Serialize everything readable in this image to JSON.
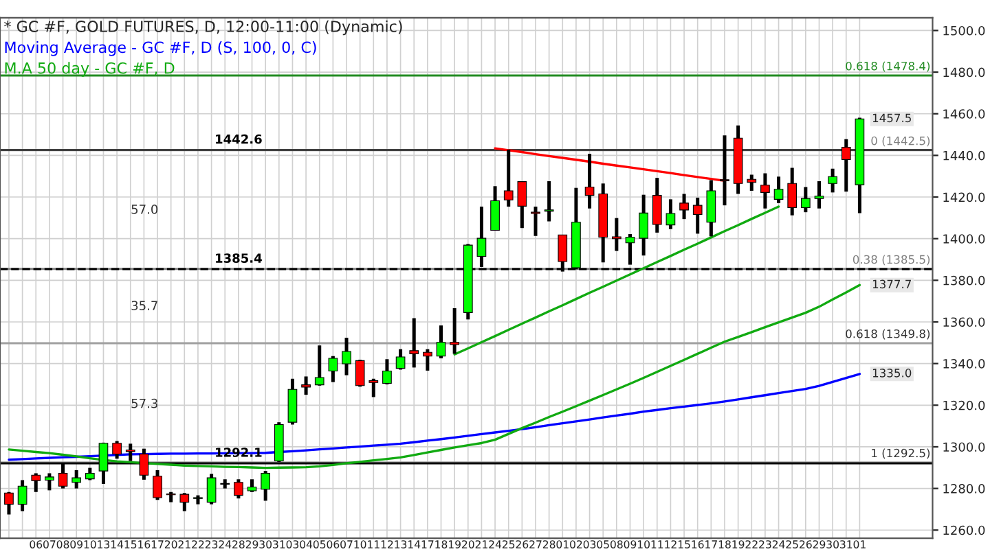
{
  "chart_data": {
    "type": "candlestick",
    "title": "* GC #F, GOLD FUTURES, D, 12:00-11:00 (Dynamic)",
    "categories": [
      null,
      null,
      "06",
      "07",
      "08",
      "09",
      "10",
      "13",
      "14",
      "15",
      "16",
      "17",
      "20",
      "21",
      "22",
      "23",
      "24",
      "28",
      "29",
      "30",
      "31",
      "03",
      "04",
      "05",
      "06",
      "07",
      "10",
      "11",
      "12",
      "13",
      "14",
      "17",
      "18",
      "19",
      "20",
      "21",
      "24",
      "25",
      "26",
      "27",
      "28",
      "01",
      "02",
      "03",
      "05",
      "08",
      "09",
      "10",
      "11",
      "12",
      "15",
      "16",
      "17",
      "18",
      "19",
      "22",
      "23",
      "24",
      "25",
      "26",
      "29",
      "30",
      "31",
      "01"
    ],
    "ohlc": [
      [
        1277.8,
        1278.3,
        1267.5,
        1272.4
      ],
      [
        1272.4,
        1284.0,
        1269.1,
        1281.1
      ],
      [
        1286.4,
        1287.3,
        1278.3,
        1283.8
      ],
      [
        1284.0,
        1287.3,
        1279.1,
        1285.5
      ],
      [
        1287.3,
        1292.3,
        1280.0,
        1281.1
      ],
      [
        1282.9,
        1288.8,
        1280.0,
        1285.1
      ],
      [
        1284.6,
        1289.9,
        1284.0,
        1287.3
      ],
      [
        1288.4,
        1302.0,
        1282.2,
        1301.7
      ],
      [
        1301.7,
        1302.8,
        1294.3,
        1296.5
      ],
      [
        1298.5,
        1301.5,
        1293.2,
        1297.7
      ],
      [
        1296.5,
        1299.1,
        1284.2,
        1286.4
      ],
      [
        1285.9,
        1288.8,
        1274.5,
        1275.6
      ],
      [
        1277.2,
        1278.3,
        1273.4,
        1277.0
      ],
      [
        1277.2,
        1277.8,
        1269.1,
        1273.4
      ],
      [
        1275.2,
        1276.7,
        1272.4,
        1275.3
      ],
      [
        1273.4,
        1287.0,
        1272.4,
        1285.1
      ],
      [
        1282.2,
        1284.4,
        1280.0,
        1282.0
      ],
      [
        1282.9,
        1284.4,
        1275.2,
        1276.7
      ],
      [
        1278.9,
        1284.4,
        1278.3,
        1280.7
      ],
      [
        1279.6,
        1288.4,
        1274.1,
        1287.3
      ],
      [
        1293.2,
        1311.8,
        1292.7,
        1310.7
      ],
      [
        1311.8,
        1332.7,
        1310.7,
        1327.6
      ],
      [
        1329.8,
        1333.8,
        1325.0,
        1328.7
      ],
      [
        1329.8,
        1348.7,
        1329.4,
        1333.3
      ],
      [
        1336.4,
        1343.6,
        1331.1,
        1342.5
      ],
      [
        1339.9,
        1352.4,
        1334.4,
        1345.8
      ],
      [
        1341.4,
        1341.8,
        1328.9,
        1329.4
      ],
      [
        1331.8,
        1332.7,
        1323.9,
        1330.9
      ],
      [
        1330.5,
        1342.1,
        1330.0,
        1336.4
      ],
      [
        1337.7,
        1346.9,
        1337.1,
        1343.2
      ],
      [
        1346.2,
        1361.8,
        1338.1,
        1344.7
      ],
      [
        1345.4,
        1346.9,
        1336.6,
        1343.6
      ],
      [
        1343.6,
        1358.3,
        1342.5,
        1350.2
      ],
      [
        1350.2,
        1366.6,
        1344.7,
        1349.1
      ],
      [
        1364.5,
        1397.4,
        1361.2,
        1396.9
      ],
      [
        1391.5,
        1415.4,
        1386.4,
        1400.2
      ],
      [
        1404.0,
        1425.2,
        1404.0,
        1418.2
      ],
      [
        1423.0,
        1442.8,
        1415.4,
        1418.6
      ],
      [
        1427.4,
        1427.6,
        1405.1,
        1415.6
      ],
      [
        1412.7,
        1415.4,
        1401.3,
        1412.1
      ],
      [
        1413.2,
        1427.6,
        1408.3,
        1413.8
      ],
      [
        1401.8,
        1401.8,
        1384.2,
        1389.0
      ],
      [
        1386.0,
        1424.4,
        1385.3,
        1407.9
      ],
      [
        1424.8,
        1440.8,
        1414.5,
        1420.8
      ],
      [
        1421.5,
        1426.5,
        1388.6,
        1400.7
      ],
      [
        1400.9,
        1409.9,
        1394.1,
        1400.0
      ],
      [
        1398.0,
        1402.2,
        1387.5,
        1400.7
      ],
      [
        1400.2,
        1421.1,
        1391.9,
        1412.3
      ],
      [
        1420.8,
        1429.2,
        1402.9,
        1406.8
      ],
      [
        1406.6,
        1418.9,
        1404.6,
        1412.1
      ],
      [
        1417.1,
        1421.5,
        1409.4,
        1413.8
      ],
      [
        1416.0,
        1419.7,
        1402.4,
        1411.6
      ],
      [
        1407.9,
        1428.1,
        1401.1,
        1423.0
      ],
      [
        1428.3,
        1449.6,
        1416.0,
        1427.8
      ],
      [
        1448.3,
        1454.4,
        1421.5,
        1426.5
      ],
      [
        1428.5,
        1430.7,
        1423.0,
        1427.0
      ],
      [
        1425.7,
        1431.4,
        1414.5,
        1422.2
      ],
      [
        1418.9,
        1429.8,
        1417.1,
        1423.7
      ],
      [
        1426.5,
        1434.0,
        1411.2,
        1414.9
      ],
      [
        1414.9,
        1424.8,
        1412.7,
        1419.3
      ],
      [
        1419.3,
        1427.6,
        1414.5,
        1420.4
      ],
      [
        1426.5,
        1433.6,
        1422.2,
        1429.8
      ],
      [
        1443.9,
        1447.8,
        1422.6,
        1438.0
      ],
      [
        1425.9,
        1458.1,
        1412.3,
        1457.5
      ]
    ],
    "colors": [
      "#ff0000",
      "#00ff00",
      "#ff0000",
      "#00ff00",
      "#ff0000",
      "#00ff00",
      "#00ff00",
      "#00ff00",
      "#ff0000",
      "#ff0000",
      "#ff0000",
      "#ff0000",
      "#ff0000",
      "#ff0000",
      "#00ff00",
      "#00ff00",
      "#ff0000",
      "#ff0000",
      "#00ff00",
      "#00ff00",
      "#00ff00",
      "#00ff00",
      "#ff0000",
      "#00ff00",
      "#00ff00",
      "#00ff00",
      "#ff0000",
      "#ff0000",
      "#00ff00",
      "#00ff00",
      "#ff0000",
      "#ff0000",
      "#00ff00",
      "#ff0000",
      "#00ff00",
      "#00ff00",
      "#00ff00",
      "#ff0000",
      "#ff0000",
      "#ff0000",
      "#00ff00",
      "#ff0000",
      "#00ff00",
      "#ff0000",
      "#ff0000",
      "#ff0000",
      "#00ff00",
      "#00ff00",
      "#ff0000",
      "#00ff00",
      "#ff0000",
      "#ff0000",
      "#00ff00",
      "#ff0000",
      "#ff0000",
      "#ff0000",
      "#ff0000",
      "#00ff00",
      "#ff0000",
      "#00ff00",
      "#00ff00",
      "#00ff00",
      "#ff0000",
      "#00ff00"
    ],
    "series": [
      {
        "name": "Moving Average - GC #F, D (S, 100, 0, C)",
        "color": "#0000ff",
        "type": "line",
        "values": [
          1293.8,
          1294.1,
          1294.4,
          1294.7,
          1295.0,
          1295.2,
          1295.5,
          1295.8,
          1296.1,
          1296.4,
          1296.5,
          1296.6,
          1296.7,
          1296.7,
          1296.8,
          1296.8,
          1296.9,
          1297.0,
          1297.0,
          1297.1,
          1297.5,
          1297.9,
          1298.3,
          1298.8,
          1299.2,
          1299.7,
          1300.1,
          1300.6,
          1301.0,
          1301.5,
          1302.2,
          1303.0,
          1303.7,
          1304.5,
          1305.3,
          1306.1,
          1306.9,
          1307.7,
          1308.5,
          1309.4,
          1310.4,
          1311.3,
          1312.2,
          1313.1,
          1314.1,
          1315.0,
          1315.9,
          1316.9,
          1317.7,
          1318.6,
          1319.3,
          1320.1,
          1320.9,
          1321.8,
          1322.8,
          1323.8,
          1324.8,
          1325.8,
          1326.8,
          1327.8,
          1329.3,
          1331.2,
          1333.1,
          1335.0
        ],
        "value_labels": [
          null,
          null,
          null,
          null,
          null,
          null,
          null,
          null,
          null,
          null,
          null,
          null,
          null,
          null,
          null,
          null,
          null,
          null,
          null,
          null,
          null,
          null,
          null,
          null,
          null,
          null,
          null,
          null,
          null,
          null,
          null,
          null,
          null,
          null,
          null,
          null,
          null,
          null,
          null,
          null,
          null,
          null,
          null,
          null,
          null,
          null,
          null,
          null,
          null,
          null,
          null,
          null,
          null,
          null,
          null,
          null,
          null,
          null,
          null,
          null,
          null,
          null,
          null,
          "1335.0"
        ]
      },
      {
        "name": "M.A 50 day - GC #F, D",
        "color": "#11aa11",
        "type": "line",
        "values": [
          1298.7,
          1298.1,
          1297.5,
          1297.0,
          1296.2,
          1295.4,
          1294.5,
          1293.7,
          1293.0,
          1292.6,
          1292.2,
          1291.8,
          1291.4,
          1291.0,
          1290.8,
          1290.6,
          1290.4,
          1290.3,
          1290.1,
          1289.9,
          1290.0,
          1290.1,
          1290.2,
          1290.6,
          1291.3,
          1292.1,
          1292.8,
          1293.5,
          1294.2,
          1294.9,
          1296.1,
          1297.3,
          1298.5,
          1299.7,
          1300.8,
          1301.8,
          1303.4,
          1306.2,
          1309.0,
          1311.6,
          1314.3,
          1316.9,
          1319.5,
          1322.2,
          1324.9,
          1327.6,
          1330.3,
          1333.1,
          1336.0,
          1338.9,
          1341.8,
          1344.7,
          1347.6,
          1350.5,
          1352.8,
          1355.1,
          1357.5,
          1359.8,
          1362.1,
          1364.4,
          1367.3,
          1370.8,
          1374.2,
          1377.7
        ],
        "value_labels": [
          null,
          null,
          null,
          null,
          null,
          null,
          null,
          null,
          null,
          null,
          null,
          null,
          null,
          null,
          null,
          null,
          null,
          null,
          null,
          null,
          null,
          null,
          null,
          null,
          null,
          null,
          null,
          null,
          null,
          null,
          null,
          null,
          null,
          null,
          null,
          null,
          null,
          null,
          null,
          null,
          null,
          null,
          null,
          null,
          null,
          null,
          null,
          null,
          null,
          null,
          null,
          null,
          null,
          null,
          null,
          null,
          null,
          null,
          null,
          null,
          null,
          null,
          null,
          "1377.7"
        ]
      },
      {
        "color": "#ff0000",
        "type": "line",
        "values": [
          null,
          null,
          null,
          null,
          null,
          null,
          null,
          null,
          null,
          null,
          null,
          null,
          null,
          null,
          null,
          null,
          null,
          null,
          null,
          null,
          null,
          null,
          null,
          null,
          null,
          null,
          null,
          null,
          null,
          null,
          null,
          null,
          null,
          null,
          null,
          null,
          1443.4,
          1442.5,
          1441.6,
          1440.6,
          1439.7,
          1438.8,
          1437.9,
          1437.0,
          1436.0,
          1435.1,
          1434.2,
          1433.3,
          1432.4,
          1431.5,
          1430.5,
          1429.6,
          1428.7,
          1427.8,
          null,
          null,
          null,
          null,
          null,
          null,
          null,
          null,
          null,
          null
        ]
      },
      {
        "color": "#11aa11",
        "type": "line",
        "values": [
          null,
          null,
          null,
          null,
          null,
          null,
          null,
          null,
          null,
          null,
          null,
          null,
          null,
          null,
          null,
          null,
          null,
          null,
          null,
          null,
          null,
          null,
          null,
          null,
          null,
          null,
          null,
          null,
          null,
          null,
          null,
          null,
          null,
          1344.4,
          1347.3,
          1350.3,
          1353.2,
          1356.2,
          1359.2,
          1362.1,
          1365.1,
          1368.0,
          1371.0,
          1374.0,
          1376.9,
          1379.9,
          1382.8,
          1385.8,
          1388.8,
          1391.7,
          1394.7,
          1397.6,
          1400.6,
          1403.6,
          1406.5,
          1409.5,
          1412.4,
          1415.4,
          null,
          null,
          null,
          null,
          null,
          null
        ]
      }
    ],
    "ref_lines": [
      {
        "axis": "y",
        "value": 1478.4,
        "label": "0.618 (1478.4)",
        "color": "#228b22"
      },
      {
        "axis": "y",
        "value": 1442.5,
        "label": "0 (1442.5)",
        "color": "#808080"
      },
      {
        "axis": "y",
        "value": 1442.6,
        "label": "1442.6",
        "color": "#404040"
      },
      {
        "axis": "y",
        "value": 1385.5,
        "label": "0.38 (1385.5)",
        "color": "#808080"
      },
      {
        "axis": "y",
        "value": 1385.4,
        "label": "1385.4",
        "color": "#000000",
        "line_style": "dashed"
      },
      {
        "axis": "y",
        "value": 1349.8,
        "label": "0.618 (1349.8)",
        "color": "#a0a0a0"
      },
      {
        "axis": "y",
        "value": 1292.5,
        "label": "1 (1292.5)",
        "color": "#a0a0a0"
      },
      {
        "axis": "y",
        "value": 1292.1,
        "label": "1292.1",
        "color": "#000000"
      }
    ],
    "annotations": [
      "57.0",
      "35.7",
      "57.3"
    ],
    "value_labels": [
      null,
      null,
      null,
      null,
      null,
      null,
      null,
      null,
      null,
      null,
      null,
      null,
      null,
      null,
      null,
      null,
      null,
      null,
      null,
      null,
      null,
      null,
      null,
      null,
      null,
      null,
      null,
      null,
      null,
      null,
      null,
      null,
      null,
      null,
      null,
      null,
      null,
      null,
      null,
      null,
      null,
      null,
      null,
      null,
      null,
      null,
      null,
      null,
      null,
      null,
      null,
      null,
      null,
      null,
      null,
      null,
      null,
      null,
      null,
      null,
      null,
      null,
      null,
      "1457.5"
    ],
    "ylim": [
      1256.1,
      1506.1
    ],
    "yticks": [
      {
        "value": 1260,
        "label": "1260.0"
      },
      {
        "value": 1280,
        "label": "1280.0"
      },
      {
        "value": 1300,
        "label": "1300.0"
      },
      {
        "value": 1320,
        "label": "1320.0"
      },
      {
        "value": 1340,
        "label": "1340.0"
      },
      {
        "value": 1360,
        "label": "1360.0"
      },
      {
        "value": 1380,
        "label": "1380.0"
      },
      {
        "value": 1400,
        "label": "1400.0"
      },
      {
        "value": 1420,
        "label": "1420.0"
      },
      {
        "value": 1440,
        "label": "1440.0"
      },
      {
        "value": 1460,
        "label": "1460.0"
      },
      {
        "value": 1480,
        "label": "1480.0"
      },
      {
        "value": 1500,
        "label": "1500.0"
      }
    ],
    "grid": true,
    "legend": "top left"
  }
}
